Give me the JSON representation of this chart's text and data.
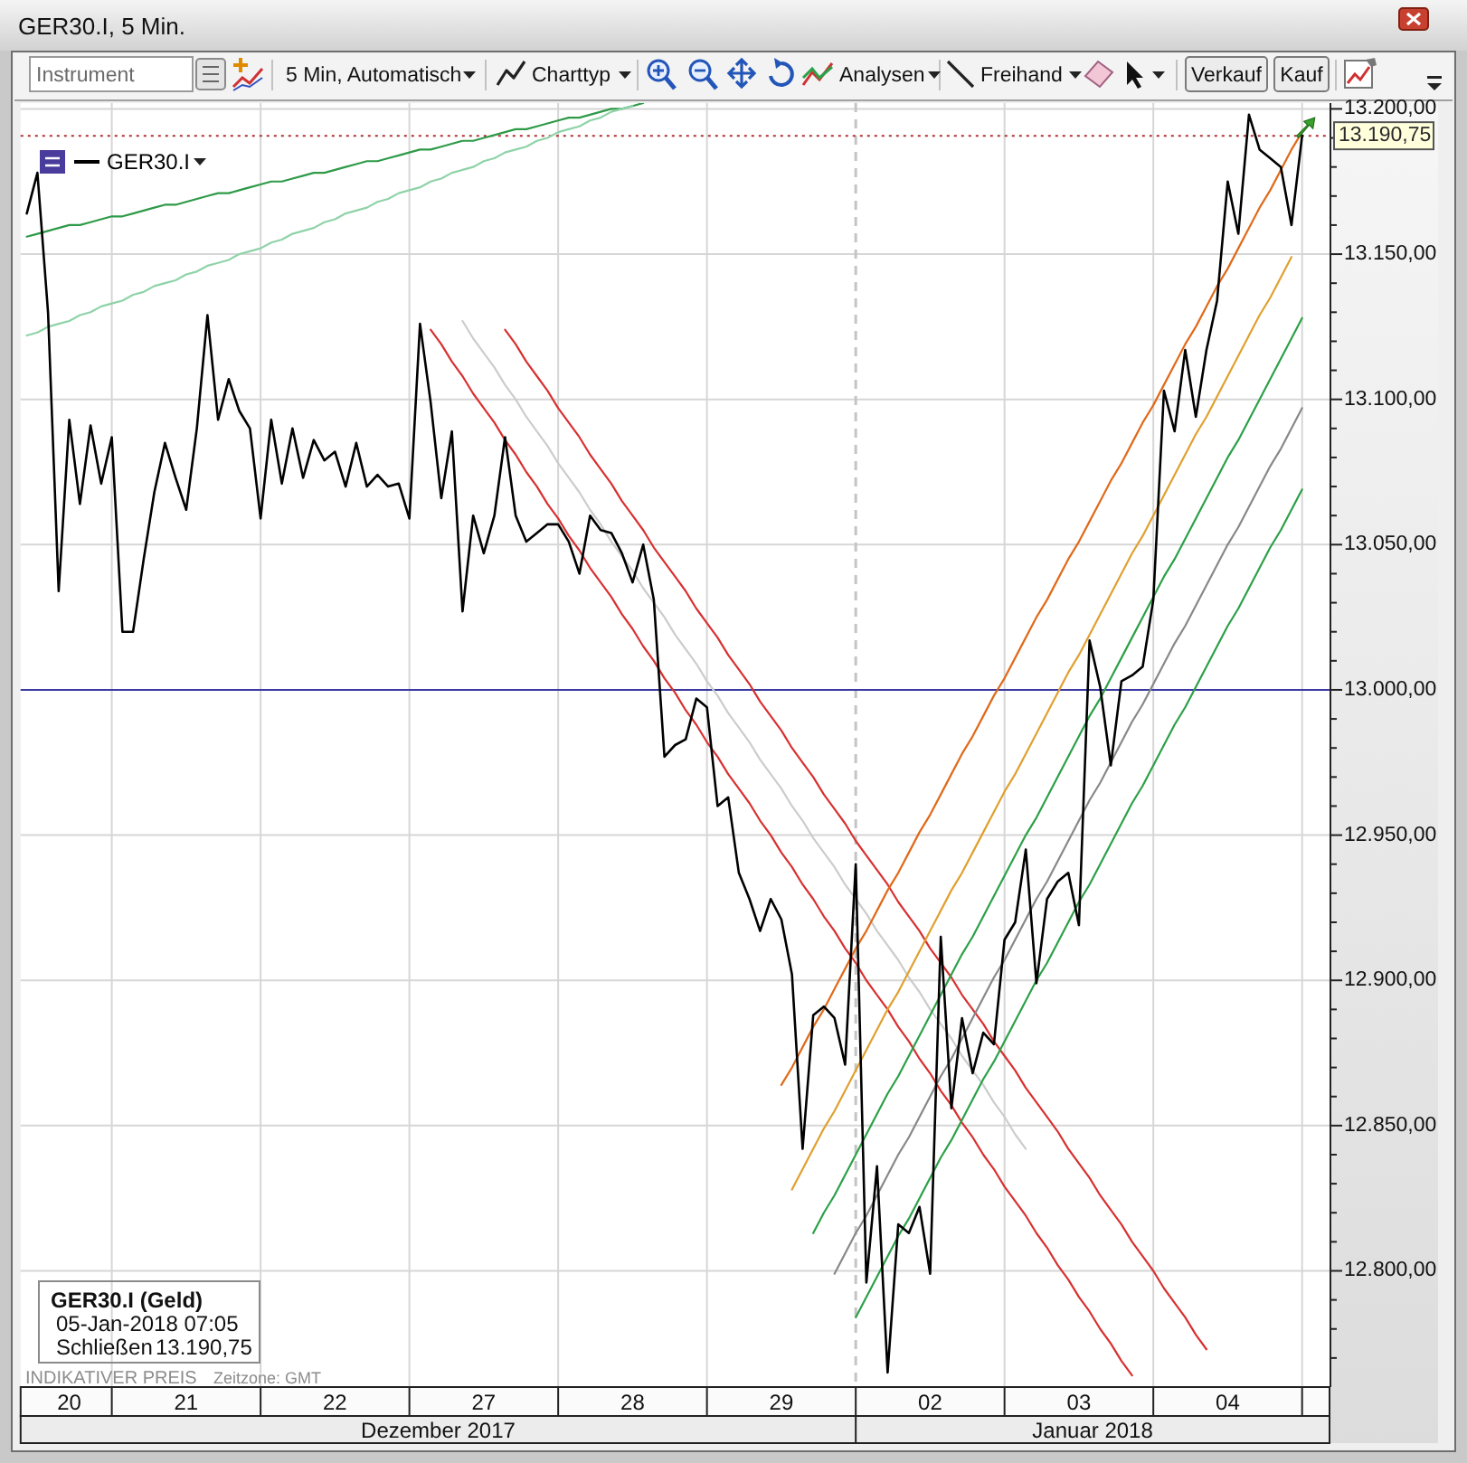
{
  "chart_data": {
    "type": "line",
    "title": "GER30.I, 5 Min.",
    "categories": [
      null,
      null,
      null,
      null,
      "20",
      null,
      null,
      null,
      null,
      null,
      null,
      null,
      null,
      null,
      null,
      "21",
      null,
      null,
      null,
      null,
      null,
      null,
      null,
      null,
      null,
      null,
      null,
      null,
      null,
      "22",
      null,
      null,
      null,
      null,
      null,
      null,
      null,
      null,
      null,
      null,
      null,
      null,
      null,
      "27",
      null,
      null,
      null,
      null,
      null,
      null,
      null,
      null,
      null,
      null,
      null,
      null,
      null,
      "28",
      null,
      null,
      null,
      null,
      null,
      null,
      null,
      null,
      null,
      null,
      null,
      null,
      null,
      "29",
      null,
      null,
      null,
      null,
      null,
      null,
      null,
      null,
      null,
      null,
      null,
      null,
      null,
      "02",
      null,
      null,
      null,
      null,
      null,
      null,
      null,
      null,
      null,
      null,
      null,
      null,
      null,
      "03",
      null,
      null,
      null,
      null,
      null,
      null,
      null,
      null,
      null,
      null,
      null,
      null,
      null,
      "04",
      null,
      null,
      null,
      null,
      null,
      null,
      null,
      null,
      null
    ],
    "ylim": [
      12760,
      13202
    ],
    "yticks": [
      {
        "value": 12770,
        "label": null
      },
      {
        "value": 12780,
        "label": null
      },
      {
        "value": 12790,
        "label": null
      },
      {
        "value": 12800,
        "label": "12.800,00"
      },
      {
        "value": 12810,
        "label": null
      },
      {
        "value": 12820,
        "label": null
      },
      {
        "value": 12830,
        "label": null
      },
      {
        "value": 12840,
        "label": null
      },
      {
        "value": 12850,
        "label": "12.850,00"
      },
      {
        "value": 12860,
        "label": null
      },
      {
        "value": 12870,
        "label": null
      },
      {
        "value": 12880,
        "label": null
      },
      {
        "value": 12890,
        "label": null
      },
      {
        "value": 12900,
        "label": "12.900,00"
      },
      {
        "value": 12910,
        "label": null
      },
      {
        "value": 12920,
        "label": null
      },
      {
        "value": 12930,
        "label": null
      },
      {
        "value": 12940,
        "label": null
      },
      {
        "value": 12950,
        "label": "12.950,00"
      },
      {
        "value": 12960,
        "label": null
      },
      {
        "value": 12970,
        "label": null
      },
      {
        "value": 12980,
        "label": null
      },
      {
        "value": 12990,
        "label": null
      },
      {
        "value": 13000,
        "label": "13.000,00"
      },
      {
        "value": 13010,
        "label": null
      },
      {
        "value": 13020,
        "label": null
      },
      {
        "value": 13030,
        "label": null
      },
      {
        "value": 13040,
        "label": null
      },
      {
        "value": 13050,
        "label": "13.050,00"
      },
      {
        "value": 13060,
        "label": null
      },
      {
        "value": 13070,
        "label": null
      },
      {
        "value": 13080,
        "label": null
      },
      {
        "value": 13090,
        "label": null
      },
      {
        "value": 13100,
        "label": "13.100,00"
      },
      {
        "value": 13110,
        "label": null
      },
      {
        "value": 13120,
        "label": null
      },
      {
        "value": 13130,
        "label": null
      },
      {
        "value": 13140,
        "label": null
      },
      {
        "value": 13150,
        "label": "13.150,00"
      },
      {
        "value": 13160,
        "label": null
      },
      {
        "value": 13170,
        "label": null
      },
      {
        "value": 13180,
        "label": null
      },
      {
        "value": 13190,
        "label": null
      },
      {
        "value": 13200,
        "label": "13.200,00"
      }
    ],
    "grid": true,
    "legend": "top left",
    "series": [
      {
        "color": "#2e9a48",
        "values": [
          13156,
          13157,
          13158,
          13159,
          13160,
          13160,
          13161,
          13162,
          13163,
          13163,
          13164,
          13165,
          13166,
          13167,
          13167,
          13168,
          13169,
          13170,
          13171,
          13171,
          13172,
          13173,
          13174,
          13175,
          13175,
          13176,
          13177,
          13178,
          13178,
          13179,
          13180,
          13181,
          13182,
          13182,
          13183,
          13184,
          13185,
          13186,
          13186,
          13187,
          13188,
          13189,
          13189,
          13190,
          13191,
          13192,
          13193,
          13193,
          13194,
          13195,
          13196,
          13197,
          13197,
          13198,
          13199,
          13200,
          13200,
          13201,
          13202,
          null,
          null,
          null,
          null,
          null,
          null,
          null,
          null,
          null,
          null,
          null,
          null,
          null,
          null,
          null,
          null,
          null,
          null,
          null,
          null,
          null,
          null,
          null,
          null,
          null,
          null,
          null,
          null,
          null,
          null,
          null,
          null,
          null,
          null,
          null,
          null,
          null,
          null,
          null,
          null,
          null,
          null,
          null,
          null,
          null,
          null,
          null,
          null,
          null,
          null,
          null,
          null,
          null,
          null,
          null,
          null,
          null,
          null,
          null,
          null,
          null,
          null,
          null,
          null
        ]
      },
      {
        "color": "#8fd3a8",
        "values": [
          13122,
          13123,
          13125,
          13126,
          13127,
          13129,
          13130,
          13132,
          13133,
          13134,
          13136,
          13137,
          13139,
          13140,
          13141,
          13143,
          13144,
          13146,
          13147,
          13148,
          13150,
          13151,
          13152,
          13154,
          13155,
          13157,
          13158,
          13159,
          13161,
          13162,
          13164,
          13165,
          13166,
          13168,
          13169,
          13171,
          13172,
          13173,
          13175,
          13176,
          13178,
          13179,
          13180,
          13182,
          13183,
          13185,
          13186,
          13187,
          13189,
          13190,
          13192,
          13193,
          13194,
          13196,
          13197,
          13199,
          13200,
          13201,
          null,
          null,
          null,
          null,
          null,
          null,
          null,
          null,
          null,
          null,
          null,
          null,
          null,
          null,
          null,
          null,
          null,
          null,
          null,
          null,
          null,
          null,
          null,
          null,
          null,
          null,
          null,
          null,
          null,
          null,
          null,
          null,
          null,
          null,
          null,
          null,
          null,
          null,
          null,
          null,
          null,
          null,
          null,
          null,
          null,
          null,
          null,
          null,
          null,
          null,
          null,
          null,
          null,
          null,
          null,
          null,
          null,
          null,
          null,
          null,
          null,
          null,
          null,
          null,
          null
        ]
      },
      {
        "color": "#d83030",
        "values": [
          null,
          null,
          null,
          null,
          null,
          null,
          null,
          null,
          null,
          null,
          null,
          null,
          null,
          null,
          null,
          null,
          null,
          null,
          null,
          null,
          null,
          null,
          null,
          null,
          null,
          null,
          null,
          null,
          null,
          null,
          null,
          null,
          null,
          null,
          null,
          null,
          null,
          null,
          13124,
          13119,
          13113,
          13108,
          13102,
          13097,
          13092,
          13086,
          13081,
          13075,
          13070,
          13064,
          13059,
          13053,
          13048,
          13042,
          13037,
          13032,
          13026,
          13021,
          13015,
          13010,
          13004,
          12999,
          12993,
          12988,
          12982,
          12977,
          12971,
          12966,
          12961,
          12955,
          12950,
          12944,
          12939,
          12933,
          12928,
          12922,
          12917,
          12911,
          12906,
          12900,
          12895,
          12890,
          12884,
          12879,
          12873,
          12868,
          12862,
          12857,
          12851,
          12846,
          12840,
          12835,
          12829,
          12824,
          12819,
          12813,
          12808,
          12802,
          12797,
          12791,
          12786,
          12780,
          12775,
          12769,
          12764,
          null,
          null,
          null,
          null,
          null,
          null,
          null,
          null,
          null,
          null,
          null,
          null,
          null,
          null,
          null,
          null,
          null,
          null
        ]
      },
      {
        "color": "#d83030",
        "values": [
          null,
          null,
          null,
          null,
          null,
          null,
          null,
          null,
          null,
          null,
          null,
          null,
          null,
          null,
          null,
          null,
          null,
          null,
          null,
          null,
          null,
          null,
          null,
          null,
          null,
          null,
          null,
          null,
          null,
          null,
          null,
          null,
          null,
          null,
          null,
          null,
          null,
          null,
          null,
          null,
          null,
          null,
          null,
          null,
          null,
          13124,
          13119,
          13113,
          13108,
          13103,
          13097,
          13092,
          13087,
          13081,
          13076,
          13071,
          13065,
          13060,
          13055,
          13049,
          13044,
          13039,
          13034,
          13028,
          13023,
          13018,
          13012,
          13007,
          13002,
          12996,
          12991,
          12986,
          12980,
          12975,
          12970,
          12964,
          12959,
          12954,
          12948,
          12943,
          12938,
          12933,
          12927,
          12922,
          12917,
          12911,
          12906,
          12901,
          12895,
          12890,
          12885,
          12879,
          12874,
          12869,
          12863,
          12858,
          12853,
          12848,
          12842,
          12837,
          12832,
          12826,
          12821,
          12816,
          12810,
          12805,
          12800,
          12794,
          12789,
          12784,
          12778,
          12773,
          null,
          null,
          null,
          null,
          null,
          null,
          null,
          null,
          null,
          null,
          null
        ]
      },
      {
        "color": "#cccccc",
        "values": [
          null,
          null,
          null,
          null,
          null,
          null,
          null,
          null,
          null,
          null,
          null,
          null,
          null,
          null,
          null,
          null,
          null,
          null,
          null,
          null,
          null,
          null,
          null,
          null,
          null,
          null,
          null,
          null,
          null,
          null,
          null,
          null,
          null,
          null,
          null,
          null,
          null,
          null,
          null,
          null,
          null,
          13127,
          13121,
          13116,
          13111,
          13105,
          13100,
          13094,
          13089,
          13084,
          13078,
          13073,
          13068,
          13062,
          13057,
          13051,
          13046,
          13041,
          13035,
          13030,
          13025,
          13019,
          13014,
          13009,
          13003,
          12998,
          12992,
          12987,
          12982,
          12976,
          12971,
          12966,
          12960,
          12955,
          12949,
          12944,
          12939,
          12933,
          12928,
          12923,
          12917,
          12912,
          12907,
          12901,
          12896,
          12890,
          12885,
          12880,
          12874,
          12869,
          12864,
          12858,
          12853,
          12847,
          12842,
          null,
          null,
          null,
          null,
          null,
          null,
          null,
          null,
          null,
          null,
          null,
          null,
          null,
          null,
          null,
          null,
          null,
          null,
          null,
          null,
          null,
          null,
          null,
          null,
          null,
          null,
          null,
          null
        ]
      },
      {
        "color": "#e06a1a",
        "values": [
          null,
          null,
          null,
          null,
          null,
          null,
          null,
          null,
          null,
          null,
          null,
          null,
          null,
          null,
          null,
          null,
          null,
          null,
          null,
          null,
          null,
          null,
          null,
          null,
          null,
          null,
          null,
          null,
          null,
          null,
          null,
          null,
          null,
          null,
          null,
          null,
          null,
          null,
          null,
          null,
          null,
          null,
          null,
          null,
          null,
          null,
          null,
          null,
          null,
          null,
          null,
          null,
          null,
          null,
          null,
          null,
          null,
          null,
          null,
          null,
          null,
          null,
          null,
          null,
          null,
          null,
          null,
          null,
          null,
          null,
          null,
          12864,
          12870,
          12877,
          12884,
          12890,
          12897,
          12904,
          12911,
          12917,
          12924,
          12931,
          12937,
          12944,
          12951,
          12957,
          12964,
          12971,
          12978,
          12984,
          12991,
          12998,
          13004,
          13011,
          13018,
          13025,
          13031,
          13038,
          13045,
          13051,
          13058,
          13065,
          13072,
          13078,
          13085,
          13092,
          13098,
          13105,
          13112,
          13119,
          13125,
          13132,
          13139,
          13145,
          13152,
          13159,
          13166,
          13172,
          13179,
          13186,
          13192,
          null,
          null
        ]
      },
      {
        "color": "#e0a030",
        "values": [
          null,
          null,
          null,
          null,
          null,
          null,
          null,
          null,
          null,
          null,
          null,
          null,
          null,
          null,
          null,
          null,
          null,
          null,
          null,
          null,
          null,
          null,
          null,
          null,
          null,
          null,
          null,
          null,
          null,
          null,
          null,
          null,
          null,
          null,
          null,
          null,
          null,
          null,
          null,
          null,
          null,
          null,
          null,
          null,
          null,
          null,
          null,
          null,
          null,
          null,
          null,
          null,
          null,
          null,
          null,
          null,
          null,
          null,
          null,
          null,
          null,
          null,
          null,
          null,
          null,
          null,
          null,
          null,
          null,
          null,
          null,
          null,
          12828,
          12835,
          12842,
          12849,
          12855,
          12862,
          12869,
          12876,
          12883,
          12890,
          12896,
          12903,
          12910,
          12917,
          12924,
          12931,
          12937,
          12944,
          12951,
          12958,
          12965,
          12971,
          12978,
          12985,
          12992,
          12999,
          13006,
          13012,
          13019,
          13026,
          13033,
          13040,
          13047,
          13053,
          13060,
          13067,
          13074,
          13081,
          13088,
          13094,
          13101,
          13108,
          13115,
          13122,
          13129,
          13135,
          13142,
          13149,
          null,
          null,
          null
        ]
      },
      {
        "color": "#2ca048",
        "values": [
          null,
          null,
          null,
          null,
          null,
          null,
          null,
          null,
          null,
          null,
          null,
          null,
          null,
          null,
          null,
          null,
          null,
          null,
          null,
          null,
          null,
          null,
          null,
          null,
          null,
          null,
          null,
          null,
          null,
          null,
          null,
          null,
          null,
          null,
          null,
          null,
          null,
          null,
          null,
          null,
          null,
          null,
          null,
          null,
          null,
          null,
          null,
          null,
          null,
          null,
          null,
          null,
          null,
          null,
          null,
          null,
          null,
          null,
          null,
          null,
          null,
          null,
          null,
          null,
          null,
          null,
          null,
          null,
          null,
          null,
          null,
          null,
          null,
          null,
          12813,
          12820,
          12826,
          12833,
          12840,
          12847,
          12854,
          12861,
          12867,
          12874,
          12881,
          12888,
          12895,
          12902,
          12909,
          12915,
          12922,
          12929,
          12936,
          12943,
          12950,
          12956,
          12963,
          12970,
          12977,
          12984,
          12991,
          12997,
          13004,
          13011,
          13018,
          13025,
          13032,
          13039,
          13045,
          13052,
          13059,
          13066,
          13073,
          13080,
          13086,
          13093,
          13100,
          13107,
          13114,
          13121,
          13128,
          null,
          null
        ]
      },
      {
        "color": "#888888",
        "values": [
          null,
          null,
          null,
          null,
          null,
          null,
          null,
          null,
          null,
          null,
          null,
          null,
          null,
          null,
          null,
          null,
          null,
          null,
          null,
          null,
          null,
          null,
          null,
          null,
          null,
          null,
          null,
          null,
          null,
          null,
          null,
          null,
          null,
          null,
          null,
          null,
          null,
          null,
          null,
          null,
          null,
          null,
          null,
          null,
          null,
          null,
          null,
          null,
          null,
          null,
          null,
          null,
          null,
          null,
          null,
          null,
          null,
          null,
          null,
          null,
          null,
          null,
          null,
          null,
          null,
          null,
          null,
          null,
          null,
          null,
          null,
          null,
          null,
          null,
          null,
          null,
          12799,
          12806,
          12813,
          12819,
          12826,
          12833,
          12840,
          12846,
          12853,
          12860,
          12867,
          12873,
          12880,
          12887,
          12894,
          12901,
          12907,
          12914,
          12921,
          12928,
          12934,
          12941,
          12948,
          12955,
          12962,
          12968,
          12975,
          12982,
          12989,
          12995,
          13002,
          13009,
          13016,
          13022,
          13029,
          13036,
          13043,
          13050,
          13056,
          13063,
          13070,
          13077,
          13083,
          13090,
          13097,
          null,
          null
        ]
      },
      {
        "color": "#2ca048",
        "values": [
          null,
          null,
          null,
          null,
          null,
          null,
          null,
          null,
          null,
          null,
          null,
          null,
          null,
          null,
          null,
          null,
          null,
          null,
          null,
          null,
          null,
          null,
          null,
          null,
          null,
          null,
          null,
          null,
          null,
          null,
          null,
          null,
          null,
          null,
          null,
          null,
          null,
          null,
          null,
          null,
          null,
          null,
          null,
          null,
          null,
          null,
          null,
          null,
          null,
          null,
          null,
          null,
          null,
          null,
          null,
          null,
          null,
          null,
          null,
          null,
          null,
          null,
          null,
          null,
          null,
          null,
          null,
          null,
          null,
          null,
          null,
          null,
          null,
          null,
          null,
          null,
          null,
          null,
          12784,
          12791,
          12798,
          12805,
          12812,
          12818,
          12825,
          12832,
          12839,
          12845,
          12852,
          12859,
          12866,
          12872,
          12879,
          12886,
          12893,
          12900,
          12906,
          12913,
          12920,
          12927,
          12933,
          12940,
          12947,
          12954,
          12961,
          12967,
          12974,
          12981,
          12988,
          12994,
          13001,
          13008,
          13015,
          13022,
          13028,
          13035,
          13042,
          13049,
          13055,
          13062,
          13069,
          null,
          null
        ]
      },
      {
        "name": "GER30.I",
        "color": "#000000",
        "values": [
          13164,
          13178,
          13130,
          13034,
          13093,
          13064,
          13091,
          13071,
          13087,
          13020,
          13020,
          13045,
          13068,
          13085,
          13073,
          13062,
          13090,
          13129,
          13093,
          13107,
          13096,
          13090,
          13059,
          13093,
          13071,
          13090,
          13073,
          13086,
          13079,
          13082,
          13070,
          13085,
          13070,
          13074,
          13070,
          13071,
          13059,
          13126,
          13099,
          13066,
          13089,
          13027,
          13060,
          13047,
          13060,
          13087,
          13060,
          13051,
          13054,
          13057,
          13057,
          13051,
          13040,
          13060,
          13055,
          13054,
          13047,
          13037,
          13050,
          13031,
          12977,
          12981,
          12983,
          12997,
          12994,
          12960,
          12963,
          12937,
          12928,
          12917,
          12928,
          12921,
          12902,
          12842,
          12888,
          12891,
          12887,
          12871,
          12940,
          12796,
          12836,
          12765,
          12816,
          12813,
          12822,
          12799,
          12915,
          12856,
          12887,
          12868,
          12882,
          12878,
          12914,
          12920,
          12945,
          12899,
          12928,
          12934,
          12937,
          12919,
          13017,
          13001,
          12974,
          13003,
          13005,
          13008,
          13031,
          13103,
          13089,
          13117,
          13094,
          13117,
          13134,
          13175,
          13157,
          13198,
          13186,
          13183,
          13180,
          13160,
          13190.75,
          null,
          null
        ]
      }
    ],
    "ref_lines": [
      {
        "axis": "y",
        "value": 13000,
        "color": "#3a3aa0",
        "line_style": "solid"
      },
      {
        "axis": "y",
        "value": 13190.75,
        "label": "13.190,75",
        "color": "#b03030",
        "line_style": "dotted"
      }
    ],
    "annotations": [
      "Instrument",
      "5 Min, Automatisch",
      "Charttyp",
      "Analysen",
      "Freihand",
      "Verkauf",
      "Kauf",
      "GER30.I (Geld)",
      "05-Jan-2018 07:05",
      "Schließen",
      "13.190,75",
      "INDIKATIVER PREIS",
      "Zeitzone: GMT",
      "Dezember 2017",
      "Januar 2018"
    ]
  }
}
